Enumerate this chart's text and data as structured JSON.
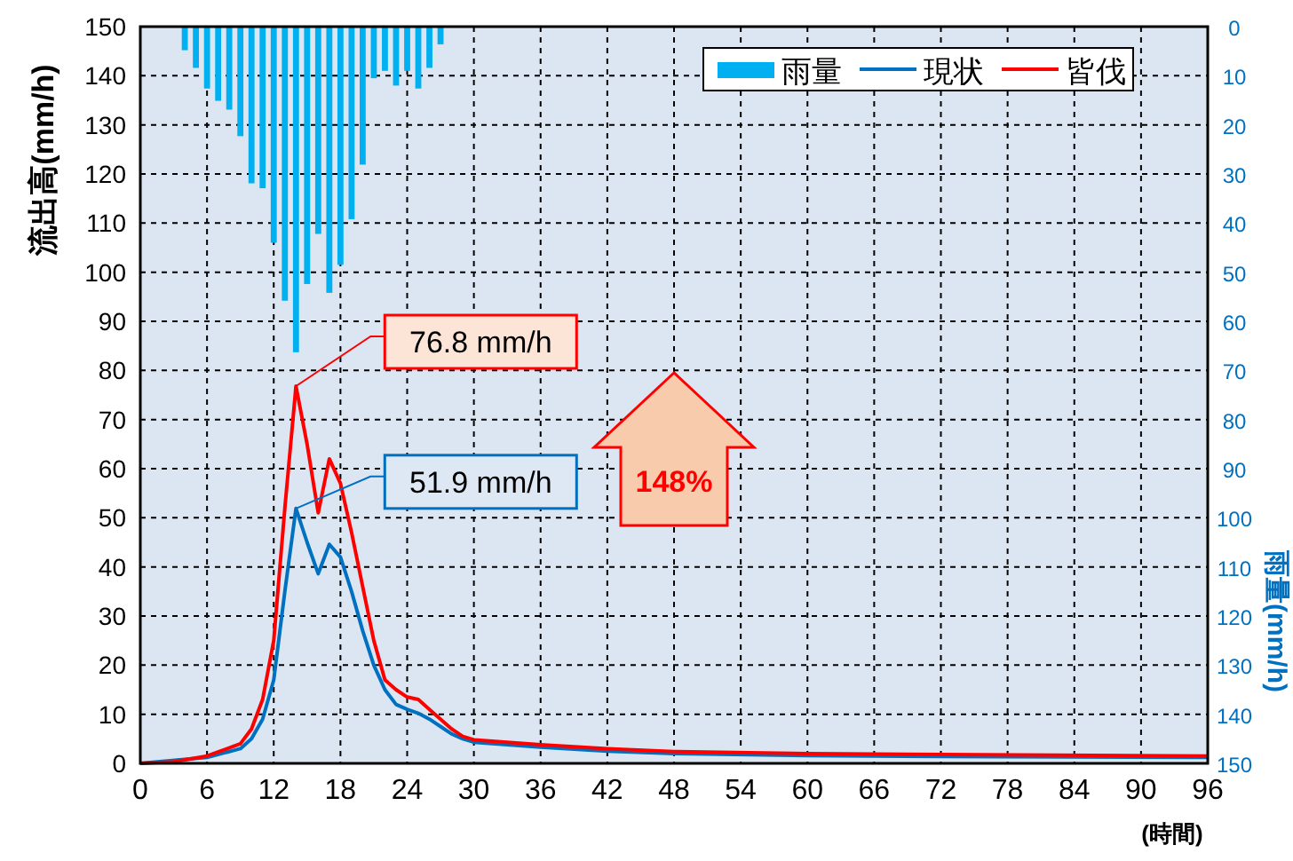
{
  "chart_data": {
    "type": "line",
    "xlabel": "(時間)",
    "ylabel": "流出高(mm/h)",
    "y2label": "雨量(mm/h)",
    "xlim": [
      0,
      96
    ],
    "xticks": [
      0,
      6,
      12,
      18,
      24,
      30,
      36,
      42,
      48,
      54,
      60,
      66,
      72,
      78,
      84,
      90,
      96
    ],
    "ylim": [
      0,
      150
    ],
    "yticks": [
      0,
      10,
      20,
      30,
      40,
      50,
      60,
      70,
      80,
      90,
      100,
      110,
      120,
      130,
      140,
      150
    ],
    "y2lim": [
      150,
      0
    ],
    "y2ticks": [
      0,
      10,
      20,
      30,
      40,
      50,
      60,
      70,
      80,
      90,
      100,
      110,
      120,
      130,
      140,
      150
    ],
    "grid": true,
    "legend": "top right",
    "series": [
      {
        "name": "雨量",
        "type": "bar",
        "axis": "y2",
        "color": "#00b0f0",
        "x": [
          4,
          5,
          6,
          7,
          8,
          9,
          10,
          11,
          12,
          13,
          14,
          15,
          16,
          17,
          18,
          19,
          20,
          21,
          22,
          23,
          24,
          25,
          26,
          27
        ],
        "values": [
          4.8,
          8.4,
          12.6,
          15.1,
          16.9,
          22.3,
          31.9,
          32.9,
          44,
          55.8,
          66.3,
          52.4,
          42.2,
          54.2,
          48.5,
          39.2,
          28.1,
          10.5,
          9,
          12,
          9,
          12.6,
          8.4,
          3.6
        ]
      },
      {
        "name": "現状",
        "color": "#0070c0",
        "x": [
          0,
          3,
          6,
          9,
          10,
          11,
          12,
          13,
          14,
          15,
          16,
          17,
          18,
          19,
          20,
          21,
          22,
          23,
          24,
          25,
          26,
          27,
          28,
          29,
          30,
          36,
          42,
          48,
          60,
          72,
          96
        ],
        "values": [
          0,
          null,
          1.2,
          3,
          5,
          9,
          17,
          35,
          51.9,
          45,
          38.6,
          44.6,
          42,
          35,
          27,
          20,
          15,
          12,
          11,
          10.2,
          9,
          7.5,
          6,
          5,
          4.3,
          3.3,
          2.5,
          2,
          1.6,
          1.4,
          1.2
        ]
      },
      {
        "name": "皆伐",
        "color": "#ff0000",
        "x": [
          0,
          3,
          6,
          9,
          10,
          11,
          12,
          13,
          14,
          15,
          16,
          17,
          18,
          19,
          20,
          21,
          22,
          23,
          24,
          25,
          26,
          27,
          28,
          29,
          30,
          36,
          42,
          48,
          60,
          72,
          96
        ],
        "values": [
          0,
          0.3,
          1.5,
          4,
          7,
          13,
          25,
          52,
          76.8,
          65,
          51,
          62,
          57,
          47,
          36,
          25,
          17,
          15,
          13.5,
          13,
          11,
          9,
          7,
          5.5,
          4.8,
          3.8,
          3,
          2.4,
          2,
          1.8,
          1.5
        ]
      }
    ],
    "annotations": [
      {
        "text": "76.8 mm/h",
        "x": 14,
        "y": 76.8
      },
      {
        "text": "51.9 mm/h",
        "x": 14,
        "y": 51.9
      },
      "148%"
    ]
  }
}
